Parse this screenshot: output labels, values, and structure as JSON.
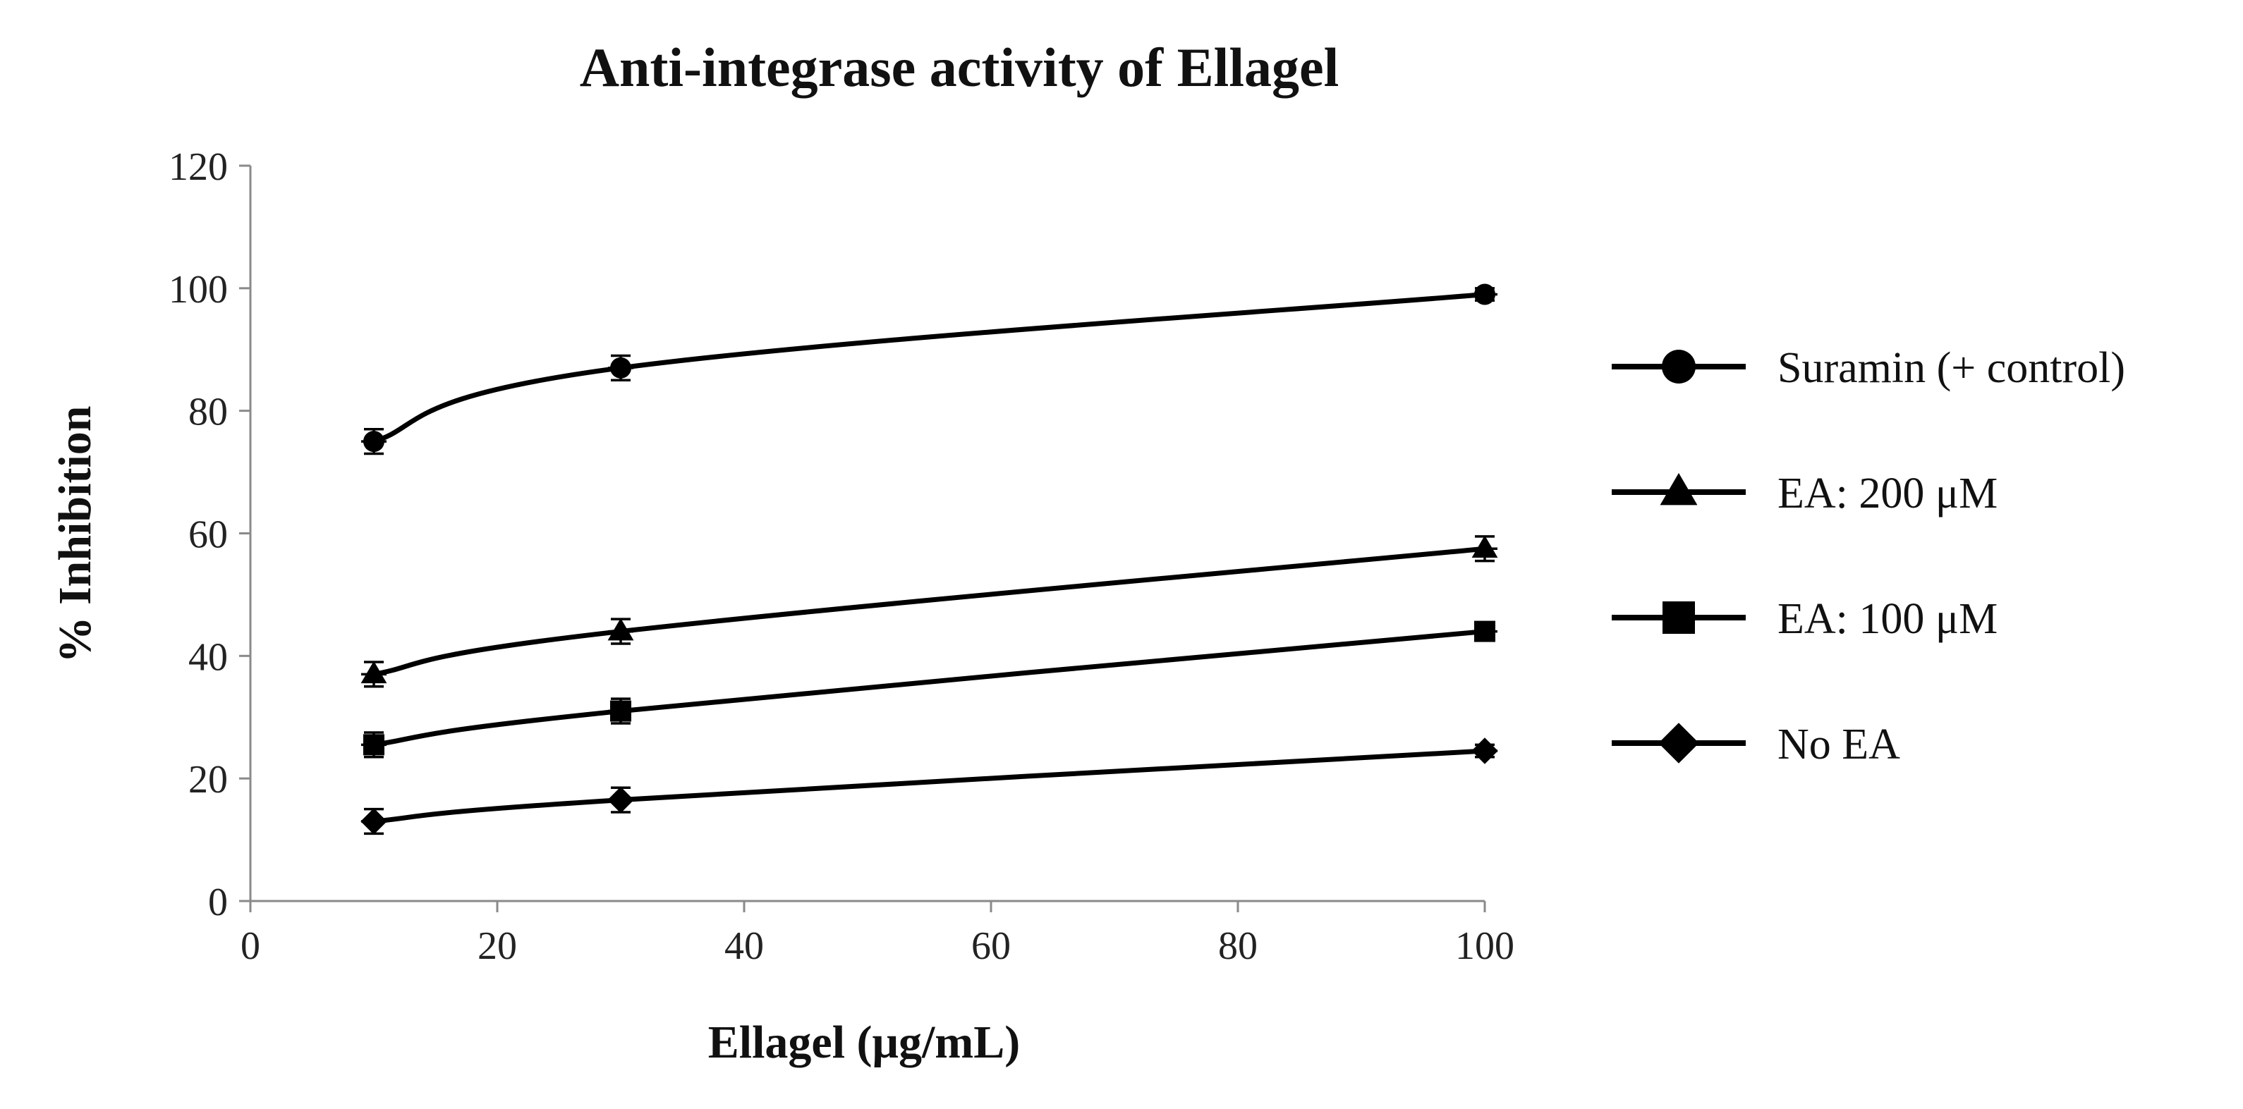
{
  "chart_data": {
    "type": "line",
    "title": "Anti-integrase activity of Ellagel",
    "xlabel": "Ellagel (μg/mL)",
    "ylabel": "% Inhibition",
    "xlim": [
      0,
      100
    ],
    "ylim": [
      0,
      120
    ],
    "x_ticks": [
      0,
      20,
      40,
      60,
      80,
      100
    ],
    "y_ticks": [
      0,
      20,
      40,
      60,
      80,
      100,
      120
    ],
    "grid": false,
    "legend_position": "right",
    "x": [
      10,
      30,
      100
    ],
    "series": [
      {
        "name": "Suramin (+ control)",
        "marker": "circle",
        "values": [
          75,
          87,
          99
        ],
        "errors": [
          2,
          2,
          1
        ]
      },
      {
        "name": "EA: 200 μM",
        "marker": "triangle",
        "values": [
          37,
          44,
          57.5
        ],
        "errors": [
          2,
          2,
          2
        ]
      },
      {
        "name": "EA: 100 μM",
        "marker": "square",
        "values": [
          25.5,
          31,
          44
        ],
        "errors": [
          2,
          2,
          1
        ]
      },
      {
        "name": "No EA",
        "marker": "diamond",
        "values": [
          13,
          16.5,
          24.5
        ],
        "errors": [
          2,
          2,
          1
        ]
      }
    ],
    "colors": {
      "series": "#000000",
      "axis": "#8a8a8a"
    }
  }
}
